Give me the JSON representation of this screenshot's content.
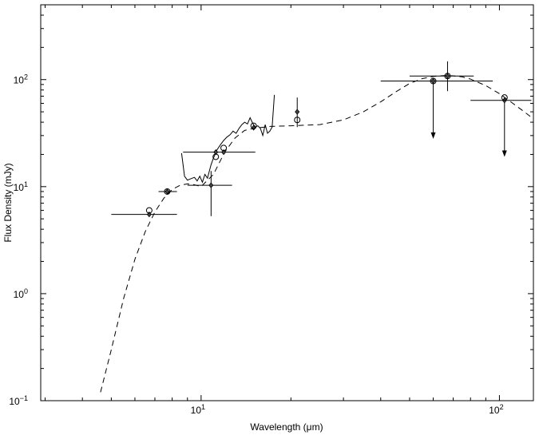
{
  "chart_data": {
    "type": "scatter",
    "title": "",
    "xlabel": "Wavelength (μm)",
    "ylabel": "Flux Density (mJy)",
    "xscale": "log",
    "yscale": "log",
    "xlim": [
      2.9,
      130
    ],
    "ylim": [
      0.1,
      500
    ],
    "x_ticks": [
      {
        "value": 10,
        "base": "10",
        "exp": "1"
      },
      {
        "value": 100,
        "base": "10",
        "exp": "2"
      }
    ],
    "y_ticks": [
      {
        "value": 0.1,
        "base": "10",
        "exp": "−1"
      },
      {
        "value": 1,
        "base": "10",
        "exp": "0"
      },
      {
        "value": 10,
        "base": "10",
        "exp": "1"
      },
      {
        "value": 100,
        "base": "10",
        "exp": "2"
      }
    ],
    "grid": false,
    "legend": "none",
    "model_curve": {
      "style": "dashed",
      "x": [
        4.6,
        5.0,
        5.5,
        6.0,
        6.5,
        7.0,
        7.5,
        8.0,
        8.5,
        9.0,
        9.5,
        10.0,
        11.0,
        12.0,
        13.0,
        14.0,
        15.0,
        17.0,
        20.0,
        25.0,
        30.0,
        35.0,
        40.0,
        45.0,
        50.0,
        55.0,
        60.0,
        65.0,
        70.0,
        75.0,
        80.0,
        90.0,
        100.0,
        110.0,
        120.0,
        130.0
      ],
      "y": [
        0.12,
        0.3,
        0.9,
        2.1,
        3.8,
        5.8,
        7.8,
        9.4,
        10.3,
        10.6,
        10.4,
        10.0,
        13.0,
        21.0,
        28.5,
        33.5,
        35.0,
        36.5,
        37.0,
        38.0,
        42.0,
        50.0,
        62.0,
        77.0,
        92.0,
        102.0,
        107.0,
        109.0,
        108.5,
        106.0,
        101.0,
        88.0,
        74.0,
        61.0,
        51.0,
        43.0
      ]
    },
    "spectrum": {
      "style": "solid",
      "x": [
        8.6,
        8.8,
        9.0,
        9.2,
        9.5,
        9.7,
        9.9,
        10.1,
        10.3,
        10.5,
        10.8,
        11.0,
        11.3,
        11.6,
        11.9,
        12.2,
        12.5,
        12.8,
        13.1,
        13.4,
        13.7,
        14.0,
        14.3,
        14.6,
        14.9,
        15.2,
        15.5,
        15.8,
        16.1,
        16.4,
        16.7,
        17.0,
        17.3,
        17.6
      ],
      "y": [
        20.5,
        12.5,
        11.5,
        11.8,
        12.2,
        11.3,
        12.5,
        11.0,
        13.0,
        12.0,
        16.0,
        18.5,
        22.0,
        24.5,
        27.0,
        29.0,
        30.5,
        33.0,
        31.5,
        35.0,
        38.0,
        40.0,
        38.5,
        44.0,
        39.0,
        36.0,
        37.0,
        35.0,
        30.0,
        38.0,
        31.5,
        33.0,
        36.0,
        72.0
      ]
    },
    "photometry": [
      {
        "x": 6.7,
        "y": 5.5,
        "xerr": [
          5.0,
          8.3
        ],
        "open_y": 6.0
      },
      {
        "x": 7.7,
        "y": 9.0,
        "xerr": [
          7.2,
          8.3
        ],
        "open_y": 9.0
      },
      {
        "x": 10.8,
        "y": 10.3,
        "xerr": [
          9.0,
          12.7
        ],
        "yerr": [
          5.3,
          14.0
        ]
      },
      {
        "x": 11.2,
        "y": 21.0,
        "xerr": [
          8.7,
          15.2
        ],
        "open_y": 19.0
      },
      {
        "x": 11.9,
        "y": 21.0,
        "open_y": 23.0
      },
      {
        "x": 15.0,
        "y": 35.5,
        "open_y": 37.0
      },
      {
        "x": 21.0,
        "y": 50.0,
        "yerr": [
          36.0,
          68.0
        ],
        "open_y": 42.0
      },
      {
        "x": 60.0,
        "y": 97.0,
        "xerr": [
          40.0,
          95.0
        ],
        "upper_limit": true,
        "arrow_to": 28.0,
        "open_y": 97.0
      },
      {
        "x": 67.0,
        "y": 108.0,
        "xerr": [
          50.0,
          82.0
        ],
        "yerr": [
          78.0,
          148.0
        ],
        "open_y": 108.0
      },
      {
        "x": 104.0,
        "y": 64.0,
        "xerr": [
          80.0,
          128.0
        ],
        "upper_limit": true,
        "arrow_to": 19.0,
        "open_y": 68.0
      }
    ]
  }
}
